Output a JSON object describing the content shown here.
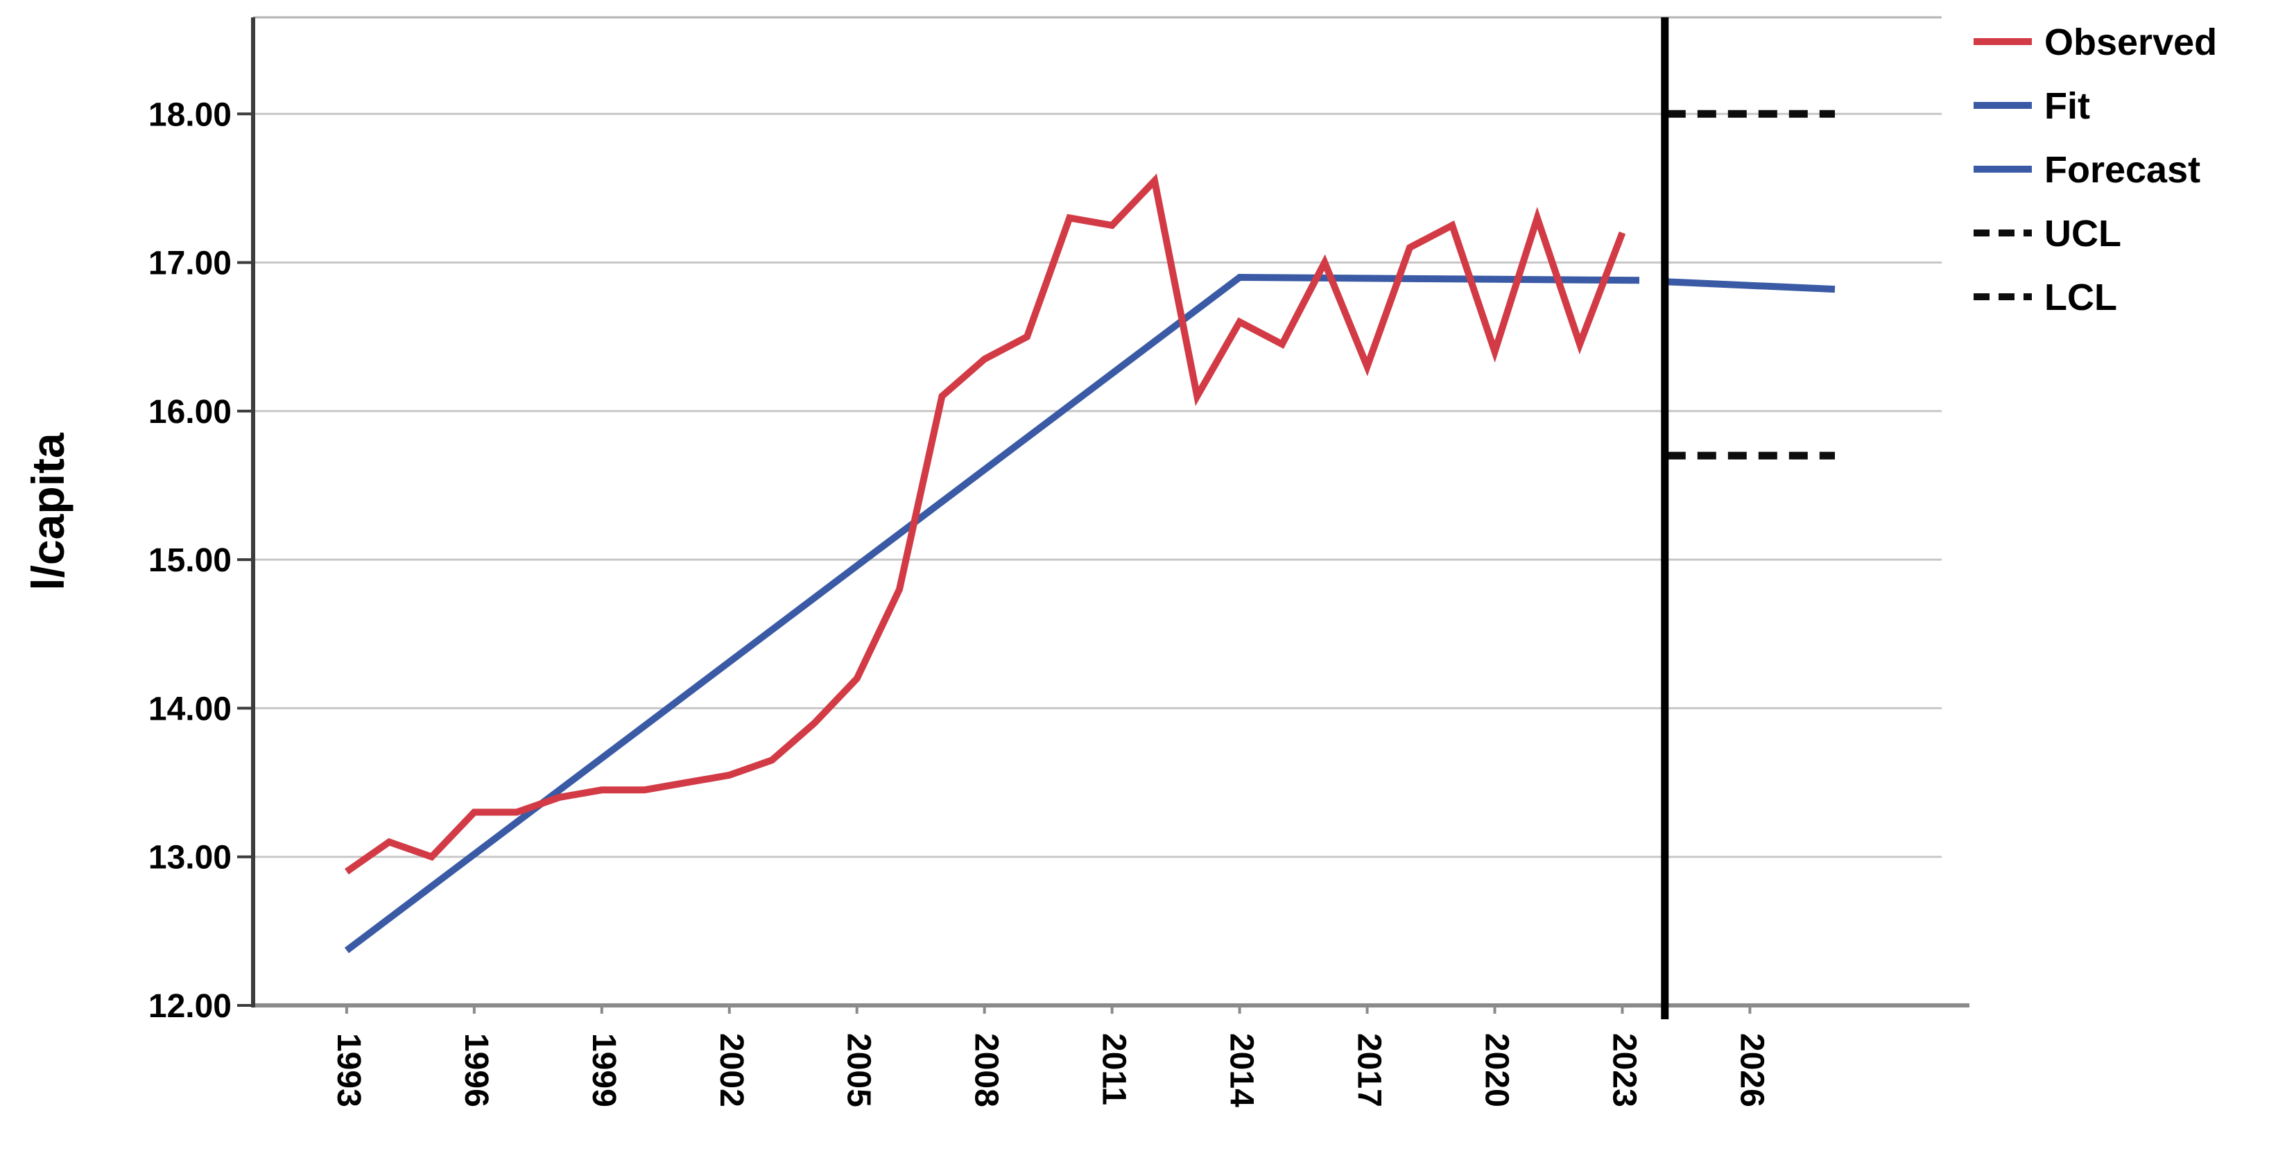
{
  "chart_data": {
    "type": "line",
    "title": "",
    "xlabel": "",
    "ylabel": "l/capita",
    "ylim": [
      12.0,
      18.65
    ],
    "xlim": [
      1990.8,
      2031.0
    ],
    "grid": "horizontal",
    "legend_position": "top-right",
    "ytick_values": [
      12,
      13,
      14,
      15,
      16,
      17,
      18
    ],
    "ytick_labels": [
      "12.00",
      "13.00",
      "14.00",
      "15.00",
      "16.00",
      "17.00",
      "18.00"
    ],
    "xtick_values": [
      1993,
      1996,
      1999,
      2002,
      2005,
      2008,
      2011,
      2014,
      2017,
      2020,
      2023,
      2026
    ],
    "xtick_labels": [
      "1993",
      "1996",
      "1999",
      "2002",
      "2005",
      "2008",
      "2011",
      "2014",
      "2017",
      "2020",
      "2023",
      "2026"
    ],
    "forecast_separator_year": 2024,
    "series": [
      {
        "name": "Observed",
        "style": "solid",
        "color_key": "observed",
        "x": [
          1993,
          1994,
          1995,
          1996,
          1997,
          1998,
          1999,
          2000,
          2001,
          2002,
          2003,
          2004,
          2005,
          2006,
          2007,
          2008,
          2009,
          2010,
          2011,
          2012,
          2013,
          2014,
          2015,
          2016,
          2017,
          2018,
          2019,
          2020,
          2021,
          2022,
          2023
        ],
        "values": [
          12.9,
          13.1,
          13.0,
          13.3,
          13.3,
          13.4,
          13.45,
          13.45,
          13.5,
          13.55,
          13.65,
          13.9,
          14.2,
          14.8,
          16.1,
          16.35,
          16.5,
          17.3,
          17.25,
          17.55,
          16.1,
          16.6,
          16.45,
          17.0,
          16.3,
          17.1,
          17.25,
          16.4,
          17.3,
          16.45,
          17.2
        ]
      },
      {
        "name": "Fit",
        "style": "solid",
        "color_key": "fit",
        "points": [
          [
            1993,
            12.37
          ],
          [
            2014,
            16.9
          ],
          [
            2023.4,
            16.88
          ]
        ]
      },
      {
        "name": "Forecast",
        "style": "solid",
        "color_key": "forecast",
        "points": [
          [
            2024.05,
            16.87
          ],
          [
            2028.0,
            16.82
          ]
        ]
      },
      {
        "name": "UCL",
        "style": "dashed",
        "color_key": "confidence",
        "points": [
          [
            2024.05,
            18.0
          ],
          [
            2028.0,
            18.0
          ]
        ]
      },
      {
        "name": "LCL",
        "style": "dashed",
        "color_key": "confidence",
        "points": [
          [
            2024.05,
            15.7
          ],
          [
            2028.0,
            15.7
          ]
        ]
      }
    ],
    "legend": [
      {
        "label": "Observed",
        "style": "solid",
        "color_key": "observed"
      },
      {
        "label": "Fit",
        "style": "solid",
        "color_key": "fit"
      },
      {
        "label": "Forecast",
        "style": "solid",
        "color_key": "forecast"
      },
      {
        "label": "UCL",
        "style": "dashed",
        "color_key": "confidence"
      },
      {
        "label": "LCL",
        "style": "dashed",
        "color_key": "confidence"
      }
    ],
    "colors": {
      "observed": "#d23b45",
      "fit": "#3a5aa5",
      "forecast": "#3a5aa5",
      "confidence": "#0d0d0d",
      "separator": "#000000",
      "gridline": "#c7c7c7",
      "frame_top": "#b3b3b3",
      "axis_left": "#3c3c3c",
      "axis_bottom": "#8a8a8a",
      "text": "#000000"
    }
  }
}
